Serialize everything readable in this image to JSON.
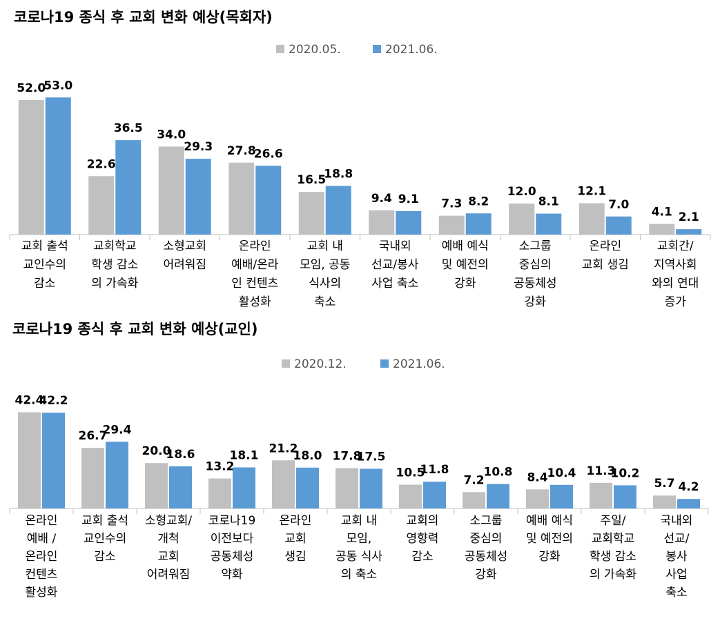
{
  "chart_data": [
    {
      "type": "bar",
      "title": "코로나19 종식 후 교회 변화 예상(목회자)",
      "series": [
        {
          "name": "2020.05.",
          "color": "#c0c0c0",
          "values": [
            52.0,
            22.6,
            34.0,
            27.8,
            16.5,
            9.4,
            7.3,
            12.0,
            12.1,
            4.1
          ]
        },
        {
          "name": "2021.06.",
          "color": "#5b9bd5",
          "values": [
            53.0,
            36.5,
            29.3,
            26.6,
            18.8,
            9.1,
            8.2,
            8.1,
            7.0,
            2.1
          ]
        }
      ],
      "categories": [
        [
          "교회 출석",
          "교인수의",
          "감소"
        ],
        [
          "교회학교",
          "학생 감소",
          "의 가속화"
        ],
        [
          "소형교회",
          "어려워짐"
        ],
        [
          "온라인",
          "예배/온라",
          "인 컨텐츠",
          "활성화"
        ],
        [
          "교회 내",
          "모임, 공동",
          "식사의",
          "축소"
        ],
        [
          "국내외",
          "선교/봉사",
          "사업 축소"
        ],
        [
          "예배 예식",
          "및 예전의",
          "강화"
        ],
        [
          "소그룹",
          "중심의",
          "공동체성",
          "강화"
        ],
        [
          "온라인",
          "교회 생김"
        ],
        [
          "교회간/",
          "지역사회",
          "와의 연대",
          "증가"
        ]
      ],
      "value_labels": [
        [
          "52.0",
          "22.6",
          "34.0",
          "27.8",
          "16.5",
          "9.4",
          "7.3",
          "12.0",
          "12.1",
          "4.1"
        ],
        [
          "53.0",
          "36.5",
          "29.3",
          "26.6",
          "18.8",
          "9.1",
          "8.2",
          "8.1",
          "7.0",
          "2.1"
        ]
      ],
      "ylim": [
        0,
        60
      ],
      "legend_position": "top-center"
    },
    {
      "type": "bar",
      "title": "코로나19 종식 후 교회 변화 예상(교인)",
      "series": [
        {
          "name": "2020.12.",
          "color": "#c0c0c0",
          "values": [
            42.4,
            26.7,
            20.0,
            13.2,
            21.2,
            17.8,
            10.5,
            7.2,
            8.4,
            11.3,
            5.7
          ]
        },
        {
          "name": "2021.06.",
          "color": "#5b9bd5",
          "values": [
            42.2,
            29.4,
            18.6,
            18.1,
            18.0,
            17.5,
            11.8,
            10.8,
            10.4,
            10.2,
            4.2
          ]
        }
      ],
      "categories": [
        [
          "온라인",
          "예배 /",
          "온라인",
          "컨텐츠",
          "활성화"
        ],
        [
          "교회 출석",
          "교인수의",
          "감소"
        ],
        [
          "소형교회/",
          "개척",
          "교회",
          "어려워짐"
        ],
        [
          "코로나19",
          "이전보다",
          "공동체성",
          "약화"
        ],
        [
          "온라인",
          "교회",
          "생김"
        ],
        [
          "교회 내",
          "모임,",
          "공동 식사",
          "의 축소"
        ],
        [
          "교회의",
          "영향력",
          "감소"
        ],
        [
          "소그룹",
          "중심의",
          "공동체성",
          "강화"
        ],
        [
          "예배 예식",
          "및 예전의",
          "강화"
        ],
        [
          "주일/",
          "교회학교",
          "학생 감소",
          "의 가속화"
        ],
        [
          "국내외",
          "선교/",
          "봉사",
          "사업",
          "축소"
        ]
      ],
      "value_labels": [
        [
          "42.4",
          "26.7",
          "20.0",
          "13.2",
          "21.2",
          "17.8",
          "10.5",
          "7.2",
          "8.4",
          "11.3",
          "5.7"
        ],
        [
          "42.2",
          "29.4",
          "18.6",
          "18.1",
          "18.0",
          "17.5",
          "11.8",
          "10.8",
          "10.4",
          "10.2",
          "4.2"
        ]
      ],
      "ylim": [
        0,
        50
      ],
      "legend_position": "top-center"
    }
  ]
}
